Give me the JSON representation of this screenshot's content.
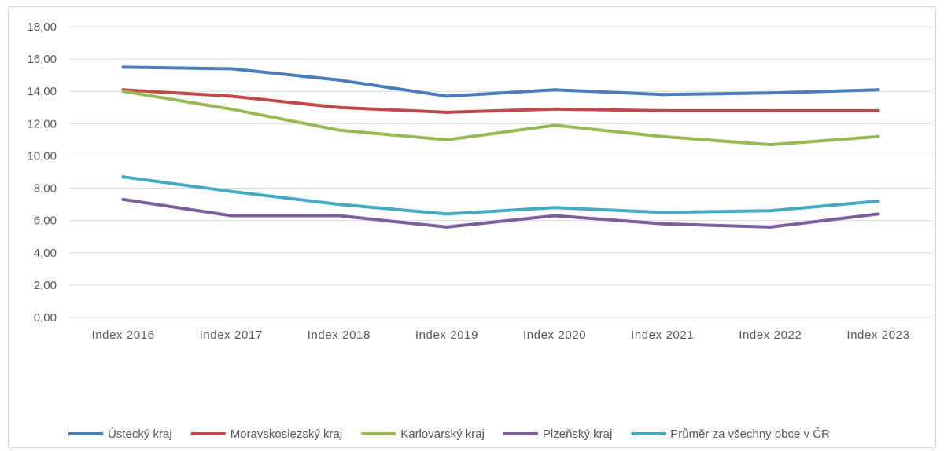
{
  "chart_data": {
    "type": "line",
    "title": "",
    "xlabel": "",
    "ylabel": "",
    "ylim": [
      0,
      18
    ],
    "yticks": [
      "0,00",
      "2,00",
      "4,00",
      "6,00",
      "8,00",
      "10,00",
      "12,00",
      "14,00",
      "16,00",
      "18,00"
    ],
    "grid": true,
    "legend_position": "bottom",
    "categories": [
      "Index 2016",
      "Index 2017",
      "Index 2018",
      "Index 2019",
      "Index 2020",
      "Index 2021",
      "Index 2022",
      "Index 2023"
    ],
    "series": [
      {
        "name": "Ústecký kraj",
        "color": "#4A7EBB",
        "values": [
          15.5,
          15.4,
          14.7,
          13.7,
          14.1,
          13.8,
          13.9,
          14.1
        ]
      },
      {
        "name": "Moravskoslezský kraj",
        "color": "#BE4B48",
        "values": [
          14.1,
          13.7,
          13.0,
          12.7,
          12.9,
          12.8,
          12.8,
          12.8
        ]
      },
      {
        "name": "Karlovarský kraj",
        "color": "#98B954",
        "values": [
          14.0,
          12.9,
          11.6,
          11.0,
          11.9,
          11.2,
          10.7,
          11.2
        ]
      },
      {
        "name": "Plzeňský kraj",
        "color": "#7D5FA0",
        "values": [
          7.3,
          6.3,
          6.3,
          5.6,
          6.3,
          5.8,
          5.6,
          6.4
        ]
      },
      {
        "name": "Průměr za všechny obce v ČR",
        "color": "#46AAC5",
        "values": [
          8.7,
          7.8,
          7.0,
          6.4,
          6.8,
          6.5,
          6.6,
          7.2
        ]
      }
    ]
  }
}
